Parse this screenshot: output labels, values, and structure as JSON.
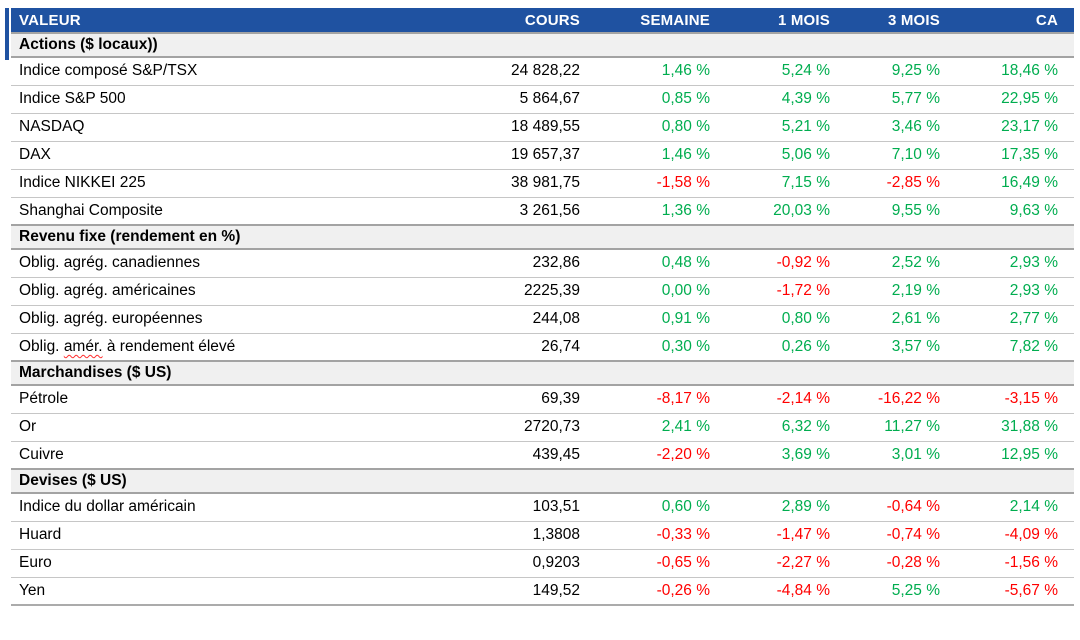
{
  "colors": {
    "header_bg": "#1F52A1",
    "positive": "#00AD4F",
    "negative": "#FF0000",
    "section_bg": "#F0F0F0"
  },
  "header": {
    "columns": [
      "VALEUR",
      "COURS",
      "SEMAINE",
      "1 MOIS",
      "3 MOIS",
      "CA"
    ]
  },
  "sections": [
    {
      "title": "Actions ($ locaux))",
      "rows": [
        {
          "label": "Indice composé S&P/TSX",
          "cours": "24 828,22",
          "pct": [
            "1,46 %",
            "5,24 %",
            "9,25 %",
            "18,46 %"
          ]
        },
        {
          "label": "Indice S&P 500",
          "cours": "5 864,67",
          "pct": [
            "0,85 %",
            "4,39 %",
            "5,77 %",
            "22,95 %"
          ]
        },
        {
          "label": "NASDAQ",
          "cours": "18 489,55",
          "pct": [
            "0,80 %",
            "5,21 %",
            "3,46 %",
            "23,17 %"
          ]
        },
        {
          "label": "DAX",
          "cours": "19 657,37",
          "pct": [
            "1,46 %",
            "5,06 %",
            "7,10 %",
            "17,35 %"
          ]
        },
        {
          "label": "Indice NIKKEI 225",
          "cours": "38 981,75",
          "pct": [
            "-1,58 %",
            "7,15 %",
            "-2,85 %",
            "16,49 %"
          ]
        },
        {
          "label": "Shanghai Composite",
          "cours": "3 261,56",
          "pct": [
            "1,36 %",
            "20,03 %",
            "9,55 %",
            "9,63 %"
          ]
        }
      ]
    },
    {
      "title": "Revenu fixe (rendement en %)",
      "rows": [
        {
          "label": "Oblig. agrég. canadiennes",
          "cours": "232,86",
          "pct": [
            "0,48 %",
            "-0,92 %",
            "2,52 %",
            "2,93 %"
          ]
        },
        {
          "label": "Oblig. agrég. américaines",
          "cours": "2225,39",
          "pct": [
            "0,00 %",
            "-1,72 %",
            "2,19 %",
            "2,93 %"
          ]
        },
        {
          "label": "Oblig. agrég. européennes",
          "cours": "244,08",
          "pct": [
            "0,91 %",
            "0,80 %",
            "2,61 %",
            "2,77 %"
          ]
        },
        {
          "label": "Oblig. amér. à rendement élevé",
          "spellcheck": "amér.",
          "cours": "26,74",
          "pct": [
            "0,30 %",
            "0,26 %",
            "3,57 %",
            "7,82 %"
          ]
        }
      ]
    },
    {
      "title": "Marchandises ($ US)",
      "rows": [
        {
          "label": "Pétrole",
          "cours": "69,39",
          "pct": [
            "-8,17 %",
            "-2,14 %",
            "-16,22 %",
            "-3,15 %"
          ]
        },
        {
          "label": "Or",
          "cours": "2720,73",
          "pct": [
            "2,41 %",
            "6,32 %",
            "11,27 %",
            "31,88 %"
          ]
        },
        {
          "label": "Cuivre",
          "cours": "439,45",
          "pct": [
            "-2,20 %",
            "3,69 %",
            "3,01 %",
            "12,95 %"
          ]
        }
      ]
    },
    {
      "title": "Devises ($ US)",
      "rows": [
        {
          "label": "Indice du dollar américain",
          "cours": "103,51",
          "pct": [
            "0,60 %",
            "2,89 %",
            "-0,64 %",
            "2,14 %"
          ]
        },
        {
          "label": "Huard",
          "cours": "1,3808",
          "pct": [
            "-0,33 %",
            "-1,47 %",
            "-0,74 %",
            "-4,09 %"
          ]
        },
        {
          "label": "Euro",
          "cours": "0,9203",
          "pct": [
            "-0,65 %",
            "-2,27 %",
            "-0,28 %",
            "-1,56 %"
          ]
        },
        {
          "label": "Yen",
          "cours": "149,52",
          "pct": [
            "-0,26 %",
            "-4,84 %",
            "5,25 %",
            "-5,67 %"
          ]
        }
      ]
    }
  ]
}
